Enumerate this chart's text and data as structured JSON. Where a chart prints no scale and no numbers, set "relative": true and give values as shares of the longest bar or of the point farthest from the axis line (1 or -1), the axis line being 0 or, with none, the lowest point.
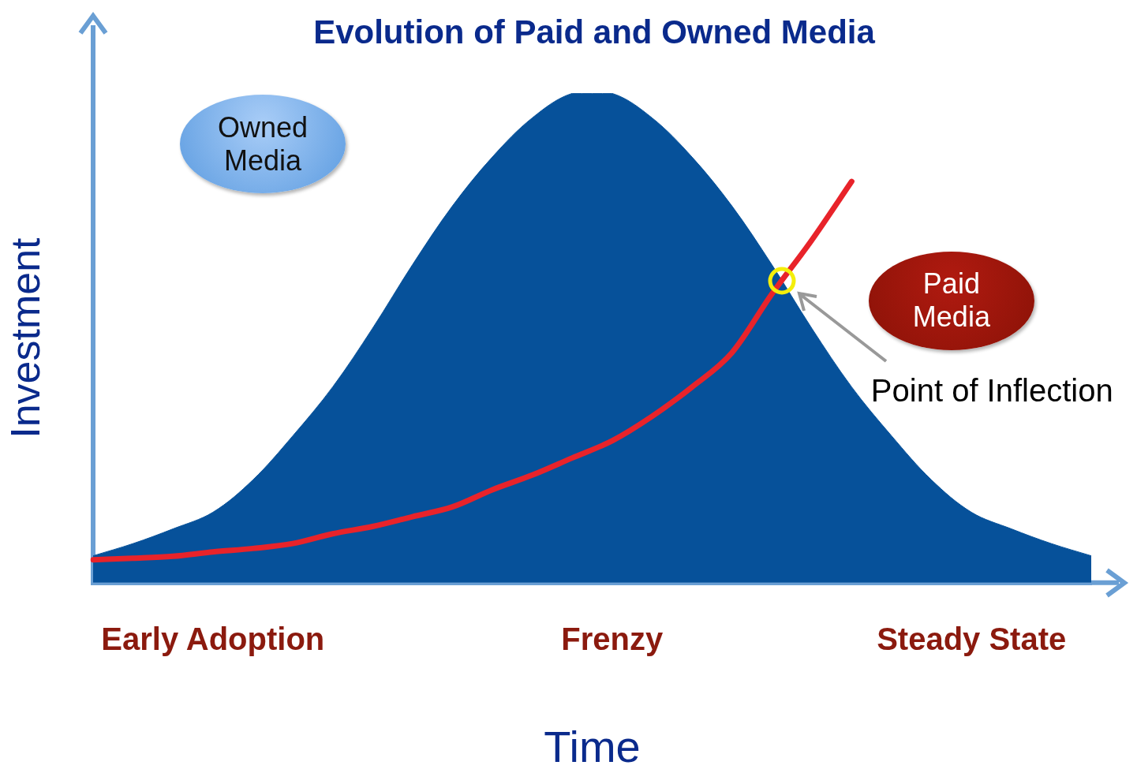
{
  "chart_data": {
    "type": "area",
    "title": "Evolution of Paid and Owned Media",
    "xlabel": "Time",
    "ylabel": "Investment",
    "relative": true,
    "legend": false,
    "grid": false,
    "categories": [
      null,
      null,
      null,
      "Early Adoption",
      null,
      null,
      null,
      null,
      null,
      null,
      null,
      null,
      null,
      "Frenzy",
      null,
      null,
      null,
      null,
      null,
      null,
      null,
      null,
      "Steady State",
      null,
      null,
      null
    ],
    "series": [
      {
        "name": "Owned Media",
        "type": "area",
        "color": "#06519a",
        "values": [
          0.055,
          0.08,
          0.11,
          0.144,
          0.21,
          0.3,
          0.4,
          0.52,
          0.65,
          0.77,
          0.87,
          0.95,
          1,
          1,
          0.95,
          0.87,
          0.77,
          0.65,
          0.52,
          0.4,
          0.3,
          0.21,
          0.144,
          0.11,
          0.08,
          0.055
        ]
      },
      {
        "name": "Paid Media",
        "type": "line",
        "color": "#e8232a",
        "values": [
          0.047,
          0.05,
          0.054,
          0.063,
          0.07,
          0.08,
          0.1,
          0.115,
          0.135,
          0.155,
          0.19,
          0.22,
          0.255,
          0.29,
          0.34,
          0.4,
          0.47,
          0.59,
          0.7,
          0.82,
          null,
          null,
          null,
          null,
          null,
          null
        ]
      }
    ],
    "annotations": [
      "Point of Inflection"
    ]
  }
}
